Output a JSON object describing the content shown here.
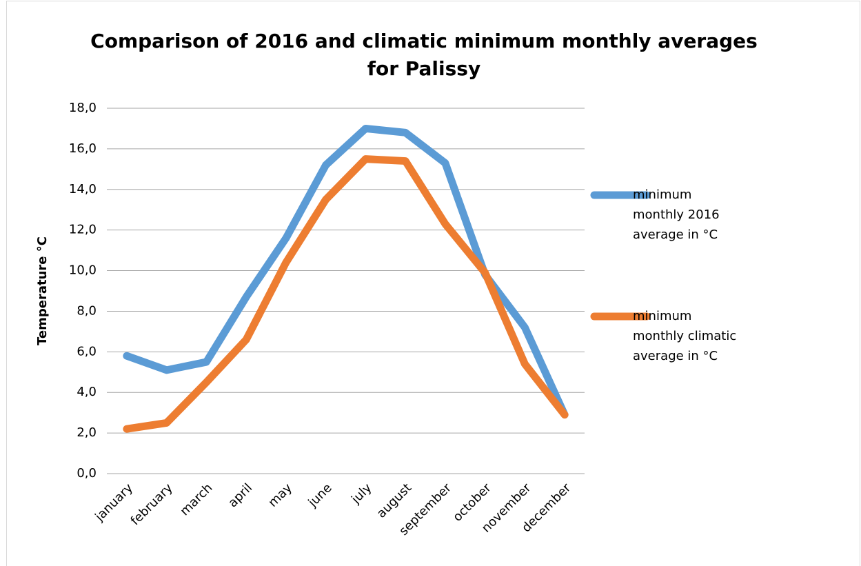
{
  "chart_data": {
    "type": "line",
    "title": "Comparison of 2016 and climatic minimum monthly averages for Palissy",
    "y_label": "Temperature °C",
    "categories": [
      "january",
      "february",
      "march",
      "april",
      "may",
      "june",
      "july",
      "august",
      "september",
      "october",
      "november",
      "december"
    ],
    "series": [
      {
        "name": "minimum monthly 2016 average in °C",
        "color": "#5b9bd5",
        "values": [
          5.8,
          5.1,
          5.5,
          8.7,
          11.6,
          15.2,
          17.0,
          16.8,
          15.3,
          9.8,
          7.2,
          2.9
        ]
      },
      {
        "name": "minimum monthly climatic average in °C",
        "color": "#ed7d31",
        "values": [
          2.2,
          2.5,
          4.5,
          6.6,
          10.4,
          13.5,
          15.5,
          15.4,
          12.3,
          9.9,
          5.4,
          2.9
        ]
      }
    ],
    "ylim": [
      0,
      18
    ],
    "yticks": [
      {
        "value": 0,
        "label": "0,0"
      },
      {
        "value": 2,
        "label": "2,0"
      },
      {
        "value": 4,
        "label": "4,0"
      },
      {
        "value": 6,
        "label": "6,0"
      },
      {
        "value": 8,
        "label": "8,0"
      },
      {
        "value": 10,
        "label": "10,0"
      },
      {
        "value": 12,
        "label": "12,0"
      },
      {
        "value": 14,
        "label": "14,0"
      },
      {
        "value": 16,
        "label": "16,0"
      },
      {
        "value": 18,
        "label": "18,0"
      }
    ],
    "grid": true,
    "legend": "right"
  }
}
